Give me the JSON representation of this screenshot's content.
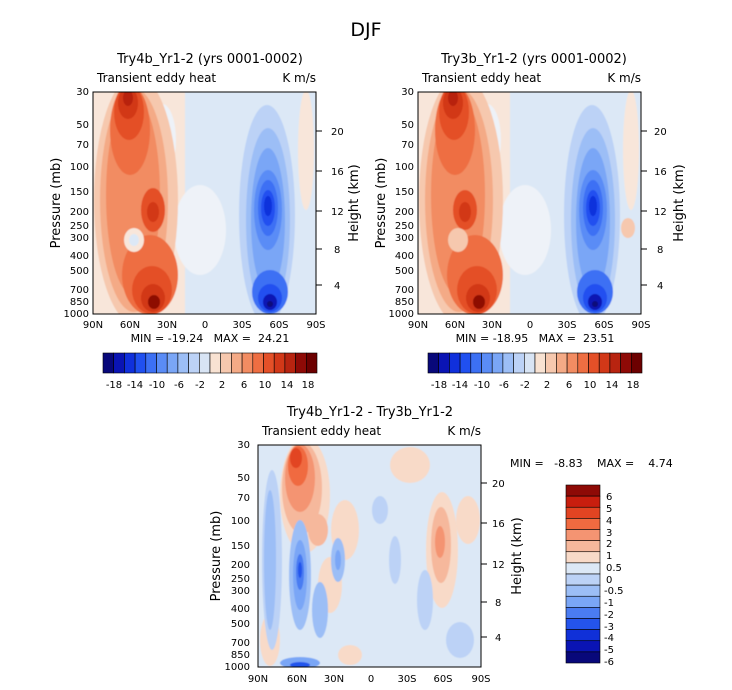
{
  "page_title": "DJF",
  "chart_data": [
    {
      "type": "heatmap",
      "title": "Try4b_Yr1-2 (yrs 0001-0002)",
      "subtitle_left": "Transient eddy heat",
      "subtitle_right": "K m/s",
      "ylabel": "Pressure (mb)",
      "ylabel_right": "Height (km)",
      "x_ticks": [
        "90N",
        "60N",
        "30N",
        "0",
        "30S",
        "60S",
        "90S"
      ],
      "y_ticks": [
        "30",
        "50",
        "70",
        "100",
        "150",
        "200",
        "250",
        "300",
        "400",
        "500",
        "700",
        "850",
        "1000"
      ],
      "height_ticks": [
        "4",
        "8",
        "12",
        "16",
        "20"
      ],
      "stats": "MIN = -19.24   MAX =  24.21",
      "colorbar_ticks": [
        "-18",
        "-14",
        "-10",
        "-6",
        "-2",
        "2",
        "6",
        "10",
        "14",
        "18"
      ],
      "hotspots_positive": [
        "60N 30mb",
        "45N 850mb",
        "50N 200mb"
      ],
      "hotspots_negative": [
        "50S 200mb",
        "50S 850mb"
      ]
    },
    {
      "type": "heatmap",
      "title": "Try3b_Yr1-2 (yrs 0001-0002)",
      "subtitle_left": "Transient eddy heat",
      "subtitle_right": "K m/s",
      "ylabel": "Pressure (mb)",
      "ylabel_right": "Height (km)",
      "x_ticks": [
        "90N",
        "60N",
        "30N",
        "0",
        "30S",
        "60S",
        "90S"
      ],
      "y_ticks": [
        "30",
        "50",
        "70",
        "100",
        "150",
        "200",
        "250",
        "300",
        "400",
        "500",
        "700",
        "850",
        "1000"
      ],
      "height_ticks": [
        "4",
        "8",
        "12",
        "16",
        "20"
      ],
      "stats": "MIN = -18.95   MAX =  23.51",
      "colorbar_ticks": [
        "-18",
        "-14",
        "-10",
        "-6",
        "-2",
        "2",
        "6",
        "10",
        "14",
        "18"
      ]
    },
    {
      "type": "heatmap",
      "title": "Try4b_Yr1-2 - Try3b_Yr1-2",
      "subtitle_left": "Transient eddy heat",
      "subtitle_right": "K m/s",
      "ylabel": "Pressure (mb)",
      "ylabel_right": "Height (km)",
      "x_ticks": [
        "90N",
        "60N",
        "30N",
        "0",
        "30S",
        "60S",
        "90S"
      ],
      "y_ticks": [
        "30",
        "50",
        "70",
        "100",
        "150",
        "200",
        "250",
        "300",
        "400",
        "500",
        "700",
        "850",
        "1000"
      ],
      "height_ticks": [
        "4",
        "8",
        "12",
        "16",
        "20"
      ],
      "stats_min": "MIN =   -8.83",
      "stats_max": "MAX =    4.74",
      "colorbar_ticks": [
        "6",
        "5",
        "4",
        "3",
        "2",
        "1",
        "0.5",
        "0",
        "-0.5",
        "-1",
        "-2",
        "-3",
        "-4",
        "-5",
        "-6"
      ]
    }
  ],
  "colors": {
    "neg": [
      "#08087a",
      "#0a14b4",
      "#1030dc",
      "#2050f0",
      "#3c70f4",
      "#5a8cf6",
      "#7aa6f6",
      "#9cbef6",
      "#bcd2f6",
      "#d8e4f4"
    ],
    "pos": [
      "#f8e2d2",
      "#f6c8ae",
      "#f4aa86",
      "#f28c62",
      "#ee6e42",
      "#e45028",
      "#d23818",
      "#b82410",
      "#8e0a06",
      "#6c0000"
    ],
    "diff_bar": [
      "#8e0a06",
      "#c81e0e",
      "#e24422",
      "#f06a40",
      "#f49472",
      "#f6b89c",
      "#f8dac8",
      "#dce8f6",
      "#bcd2f6",
      "#9cbef6",
      "#7aa6f6",
      "#4a7cf2",
      "#2454ec",
      "#1030d8",
      "#0a14b4",
      "#08087a"
    ]
  }
}
